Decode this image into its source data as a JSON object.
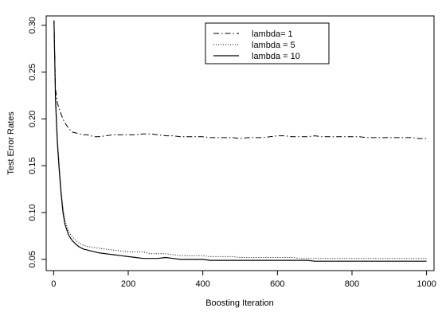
{
  "chart_data": {
    "type": "line",
    "title": "",
    "xlabel": "Boosting Iteration",
    "ylabel": "Test Error Rates",
    "xlim": [
      -20,
      1020
    ],
    "ylim": [
      0.038,
      0.31
    ],
    "xticks": [
      0,
      200,
      400,
      600,
      800,
      1000
    ],
    "xtick_labels": [
      "0",
      "200",
      "400",
      "600",
      "800",
      "1000"
    ],
    "yticks": [
      0.05,
      0.1,
      0.15,
      0.2,
      0.25,
      0.3
    ],
    "ytick_labels": [
      "0.05",
      "0.10",
      "0.15",
      "0.20",
      "0.25",
      "0.30"
    ],
    "grid": false,
    "legend_position": "top-right",
    "series": [
      {
        "name": "lambda= 1",
        "line_style": "dashdot",
        "x": [
          1,
          5,
          10,
          15,
          20,
          25,
          30,
          40,
          50,
          60,
          70,
          80,
          90,
          100,
          110,
          120,
          140,
          160,
          180,
          200,
          220,
          240,
          260,
          280,
          300,
          320,
          340,
          360,
          380,
          400,
          420,
          440,
          460,
          480,
          500,
          520,
          540,
          560,
          580,
          600,
          620,
          640,
          660,
          680,
          700,
          720,
          740,
          760,
          780,
          800,
          820,
          840,
          860,
          880,
          900,
          920,
          940,
          960,
          980,
          1000
        ],
        "y": [
          0.305,
          0.232,
          0.217,
          0.211,
          0.205,
          0.2,
          0.196,
          0.19,
          0.186,
          0.185,
          0.184,
          0.183,
          0.183,
          0.182,
          0.181,
          0.181,
          0.182,
          0.183,
          0.183,
          0.183,
          0.183,
          0.184,
          0.184,
          0.183,
          0.182,
          0.182,
          0.181,
          0.181,
          0.181,
          0.181,
          0.18,
          0.18,
          0.18,
          0.18,
          0.179,
          0.18,
          0.18,
          0.18,
          0.181,
          0.182,
          0.182,
          0.181,
          0.181,
          0.181,
          0.182,
          0.181,
          0.181,
          0.181,
          0.181,
          0.181,
          0.181,
          0.18,
          0.18,
          0.18,
          0.18,
          0.18,
          0.18,
          0.18,
          0.179,
          0.179
        ]
      },
      {
        "name": "lambda = 5",
        "line_style": "dotted",
        "x": [
          1,
          5,
          10,
          15,
          20,
          25,
          30,
          40,
          50,
          60,
          70,
          80,
          90,
          100,
          120,
          140,
          160,
          180,
          200,
          220,
          240,
          260,
          280,
          300,
          320,
          340,
          360,
          380,
          400,
          420,
          440,
          460,
          480,
          500,
          520,
          540,
          560,
          580,
          600,
          620,
          640,
          660,
          680,
          700,
          720,
          740,
          760,
          780,
          800,
          820,
          840,
          860,
          880,
          900,
          920,
          940,
          960,
          980,
          1000
        ],
        "y": [
          0.305,
          0.225,
          0.18,
          0.15,
          0.125,
          0.105,
          0.092,
          0.08,
          0.074,
          0.07,
          0.067,
          0.065,
          0.064,
          0.063,
          0.062,
          0.061,
          0.06,
          0.059,
          0.058,
          0.058,
          0.058,
          0.056,
          0.056,
          0.056,
          0.055,
          0.054,
          0.054,
          0.054,
          0.054,
          0.053,
          0.053,
          0.053,
          0.053,
          0.052,
          0.052,
          0.052,
          0.052,
          0.052,
          0.052,
          0.052,
          0.052,
          0.051,
          0.051,
          0.051,
          0.051,
          0.051,
          0.051,
          0.051,
          0.051,
          0.051,
          0.051,
          0.051,
          0.051,
          0.051,
          0.051,
          0.051,
          0.051,
          0.051,
          0.051
        ]
      },
      {
        "name": "lambda = 10",
        "line_style": "solid",
        "x": [
          1,
          5,
          10,
          15,
          20,
          25,
          30,
          40,
          50,
          60,
          70,
          80,
          90,
          100,
          120,
          140,
          160,
          180,
          200,
          220,
          240,
          260,
          280,
          300,
          320,
          340,
          360,
          380,
          400,
          420,
          440,
          460,
          480,
          500,
          520,
          540,
          560,
          580,
          600,
          620,
          640,
          660,
          680,
          700,
          720,
          740,
          760,
          780,
          800,
          820,
          840,
          860,
          880,
          900,
          920,
          940,
          960,
          980,
          1000
        ],
        "y": [
          0.305,
          0.22,
          0.175,
          0.145,
          0.12,
          0.1,
          0.088,
          0.076,
          0.07,
          0.066,
          0.063,
          0.061,
          0.06,
          0.059,
          0.057,
          0.056,
          0.055,
          0.054,
          0.053,
          0.052,
          0.051,
          0.051,
          0.051,
          0.052,
          0.051,
          0.05,
          0.05,
          0.05,
          0.05,
          0.049,
          0.049,
          0.049,
          0.049,
          0.049,
          0.049,
          0.049,
          0.049,
          0.049,
          0.049,
          0.049,
          0.049,
          0.049,
          0.049,
          0.048,
          0.048,
          0.048,
          0.048,
          0.048,
          0.048,
          0.048,
          0.048,
          0.048,
          0.048,
          0.048,
          0.048,
          0.048,
          0.048,
          0.048,
          0.048
        ]
      }
    ]
  }
}
